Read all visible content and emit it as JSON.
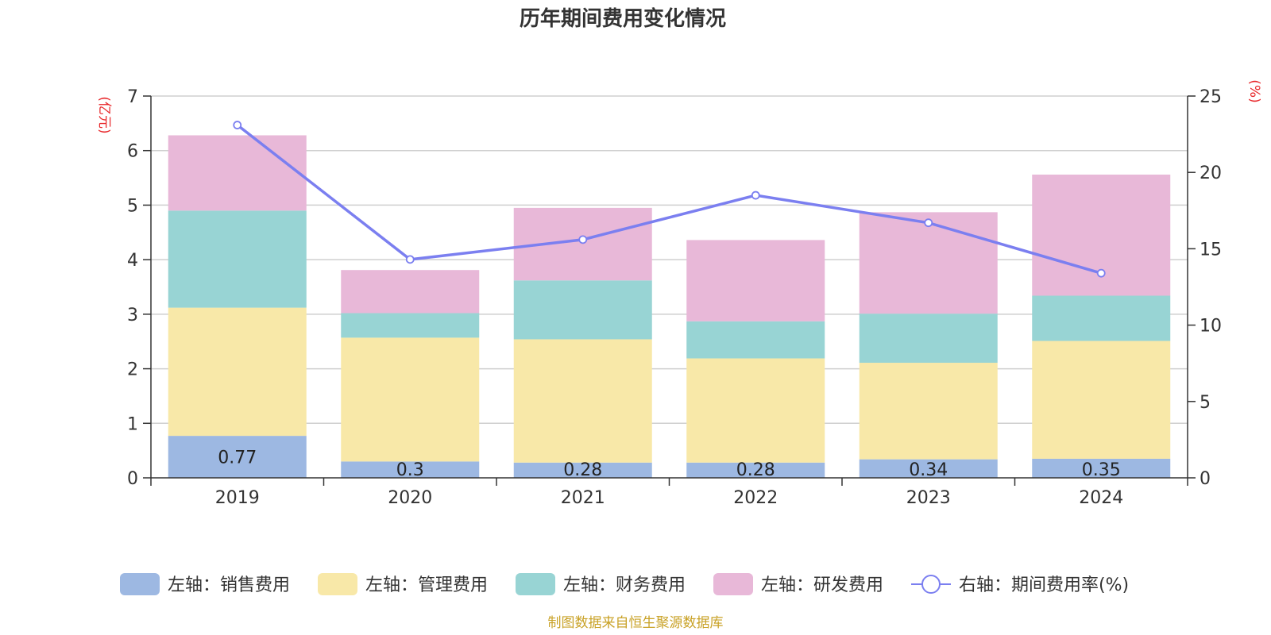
{
  "chart_data": {
    "type": "bar",
    "stacked": true,
    "title": "历年期间费用变化情况",
    "categories": [
      "2019",
      "2020",
      "2021",
      "2022",
      "2023",
      "2024"
    ],
    "left_axis": {
      "unit": "(亿元)",
      "ylim": [
        0,
        7
      ],
      "ticks": [
        "0",
        "1",
        "2",
        "3",
        "4",
        "5",
        "6",
        "7"
      ]
    },
    "right_axis": {
      "unit": "(%)",
      "ylim": [
        0,
        25
      ],
      "ticks": [
        "0",
        "5",
        "10",
        "15",
        "20",
        "25"
      ]
    },
    "series": [
      {
        "name": "左轴：销售费用",
        "color": "#9db8e2",
        "values": [
          0.77,
          0.3,
          0.28,
          0.28,
          0.34,
          0.35
        ],
        "labels": [
          "0.77",
          "0.3",
          "0.28",
          "0.28",
          "0.34",
          "0.35"
        ]
      },
      {
        "name": "左轴：管理费用",
        "color": "#f8e8a8",
        "values": [
          2.35,
          2.27,
          2.26,
          1.91,
          1.77,
          2.16
        ]
      },
      {
        "name": "左轴：财务费用",
        "color": "#98d4d4",
        "values": [
          1.78,
          0.45,
          1.08,
          0.68,
          0.9,
          0.83
        ]
      },
      {
        "name": "左轴：研发费用",
        "color": "#e8b8d8",
        "values": [
          1.38,
          0.79,
          1.33,
          1.49,
          1.86,
          2.22
        ]
      }
    ],
    "line_series": {
      "name": "右轴：期间费用率(%)",
      "color": "#7b7ff0",
      "values": [
        23.1,
        14.3,
        15.6,
        18.5,
        16.7,
        13.4
      ]
    },
    "grid": true,
    "legend_position": "bottom"
  },
  "source_note": "制图数据来自恒生聚源数据库",
  "colors": {
    "axis_unit": "#e8282b",
    "source": "#c9a227",
    "grid": "#cfcfcf",
    "axis": "#333333"
  }
}
